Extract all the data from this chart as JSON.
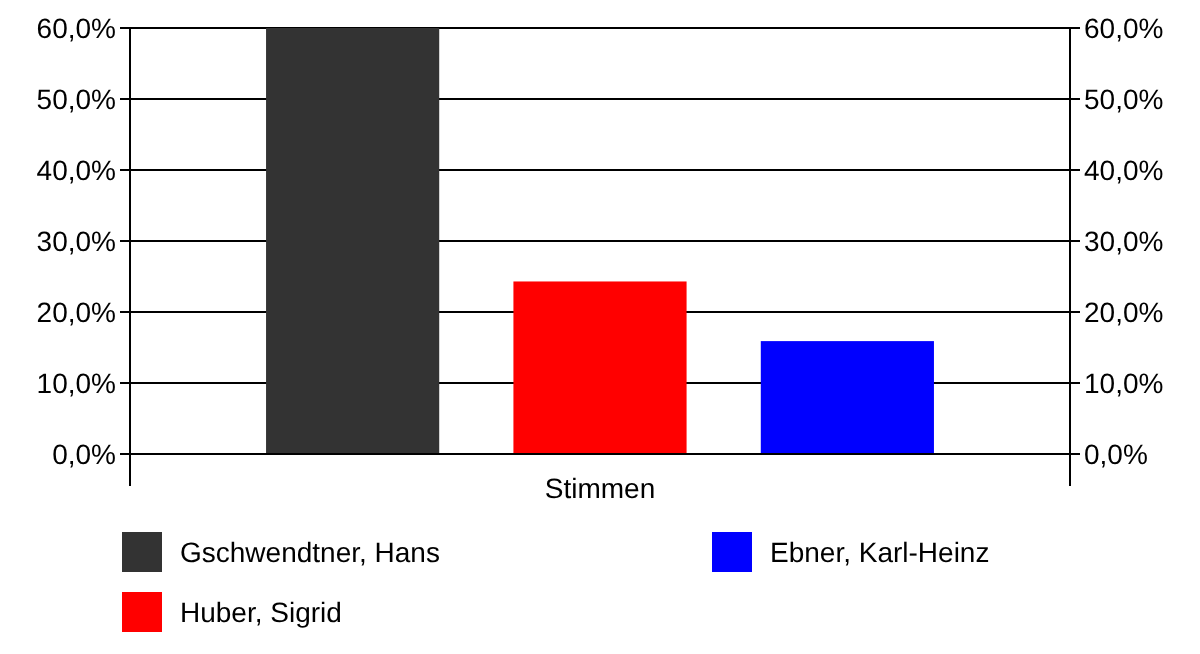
{
  "chart_data": {
    "type": "bar",
    "categories": [
      "Stimmen"
    ],
    "series": [
      {
        "name": "Gschwendtner, Hans",
        "color": "#333333",
        "values": [
          60
        ]
      },
      {
        "name": "Huber, Sigrid",
        "color": "#ff0000",
        "values": [
          24.3
        ]
      },
      {
        "name": "Ebner, Karl-Heinz",
        "color": "#0000ff",
        "values": [
          15.9
        ]
      }
    ],
    "ylim": [
      0,
      60
    ],
    "yticks": [
      {
        "value": 0,
        "label": "0,0%"
      },
      {
        "value": 10,
        "label": "10,0%"
      },
      {
        "value": 20,
        "label": "20,0%"
      },
      {
        "value": 30,
        "label": "30,0%"
      },
      {
        "value": 40,
        "label": "40,0%"
      },
      {
        "value": 50,
        "label": "50,0%"
      },
      {
        "value": 60,
        "label": "60,0%"
      }
    ],
    "grid": "y",
    "legend": "bottom"
  }
}
